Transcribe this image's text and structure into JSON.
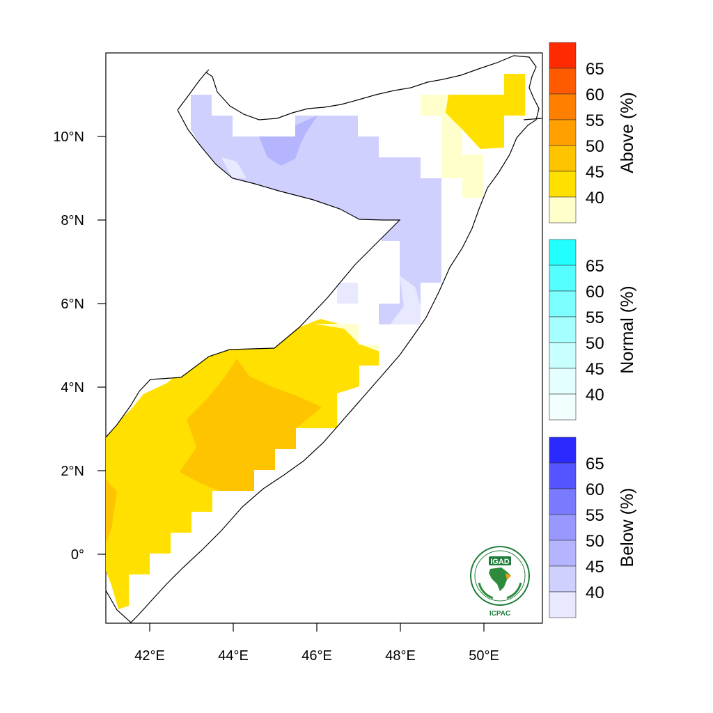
{
  "map": {
    "x_ticks": [
      "42°E",
      "44°E",
      "46°E",
      "48°E",
      "50°E"
    ],
    "y_ticks": [
      "10°N",
      "8°N",
      "6°N",
      "4°N",
      "2°N",
      "0°"
    ]
  },
  "colorbars": [
    {
      "title": "Above (%)",
      "levels": [
        "65",
        "60",
        "55",
        "50",
        "45",
        "40"
      ],
      "colors": [
        "#ff2a00",
        "#ff5a00",
        "#ff8000",
        "#ff9f00",
        "#ffc400",
        "#ffe000",
        "#ffffcc"
      ]
    },
    {
      "title": "Normal (%)",
      "levels": [
        "65",
        "60",
        "55",
        "50",
        "45",
        "40"
      ],
      "colors": [
        "#22ffff",
        "#55ffff",
        "#7dffff",
        "#a5ffff",
        "#c8ffff",
        "#e3ffff",
        "#f2ffff"
      ]
    },
    {
      "title": "Below (%)",
      "levels": [
        "65",
        "60",
        "55",
        "50",
        "45",
        "40"
      ],
      "colors": [
        "#2a2aff",
        "#5555ff",
        "#7a7aff",
        "#9898ff",
        "#b5b5ff",
        "#d0d0ff",
        "#e8e8ff"
      ]
    }
  ],
  "fills": {
    "above_40": "#ffe000",
    "above_45": "#ffc400",
    "above_low": "#ffffcc",
    "below_40": "#d0d0ff",
    "below_45": "#b5b5ff",
    "below_low": "#e8e8ff"
  },
  "logo": {
    "name": "IGAD",
    "sub": "ICPAC"
  }
}
